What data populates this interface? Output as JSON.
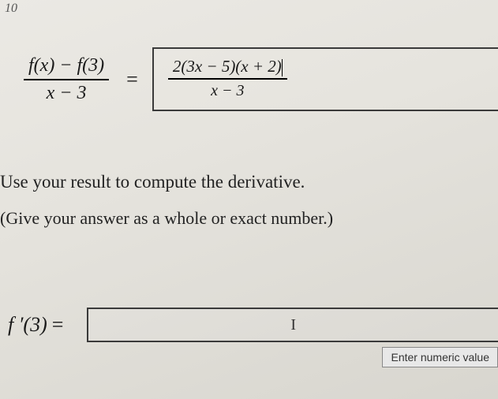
{
  "top_marker": "10",
  "equation": {
    "lhs_num": "f(x) − f(3)",
    "lhs_den": "x − 3",
    "equals": "=",
    "rhs_num": "2(3x − 5)(x + 2)",
    "rhs_den": "x − 3"
  },
  "instructions": {
    "line1": "Use your result to compute the derivative.",
    "line2": "(Give your answer as a whole or exact number.)"
  },
  "final": {
    "label_func": "f ′(3)",
    "label_eq": "=",
    "cursor_glyph": "I"
  },
  "tooltip": "Enter numeric value",
  "styles": {
    "body_font": "Times New Roman",
    "bg_gradient_start": "#ebe9e4",
    "bg_gradient_end": "#d8d6cf",
    "text_color": "#1a1a1a",
    "border_color": "#3a3a3a",
    "tooltip_bg": "#e8e8e8",
    "tooltip_border": "#888888",
    "equation_fontsize": 24,
    "instruction_fontsize": 23,
    "fprime_fontsize": 26,
    "tooltip_fontsize": 14
  }
}
